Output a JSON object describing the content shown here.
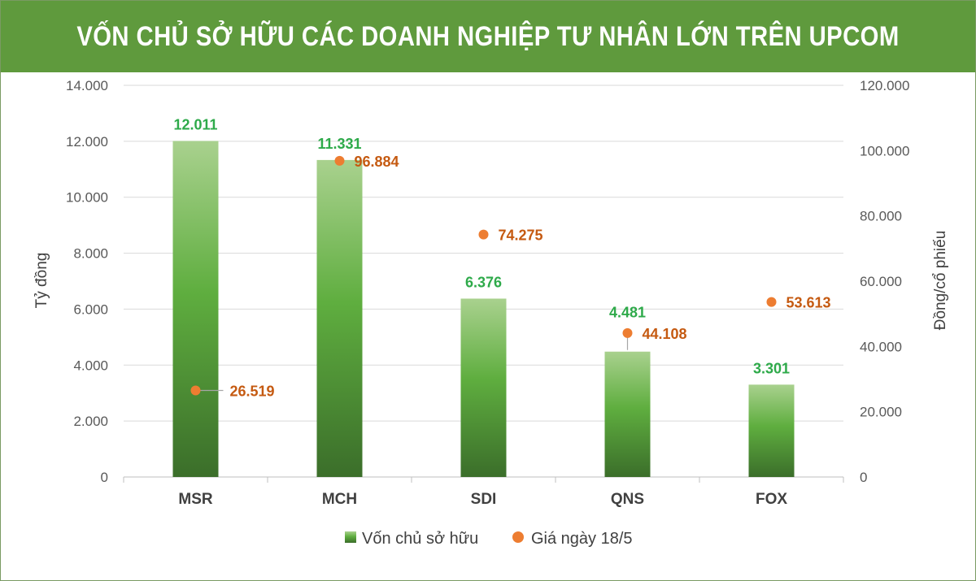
{
  "title": "VỐN CHỦ SỞ HỮU CÁC DOANH NGHIỆP TƯ NHÂN LỚN TRÊN UPCOM",
  "colors": {
    "title_bg": "#5f9a3d",
    "bar_top": "#a9d18e",
    "bar_mid": "#5fae3f",
    "bar_bottom": "#3b6e2a",
    "dot": "#ed7d31",
    "bar_label": "#2eaa4a",
    "dot_label": "#c55a11"
  },
  "chart_data": {
    "type": "bar",
    "title": "VỐN CHỦ SỞ HỮU CÁC DOANH NGHIỆP TƯ NHÂN LỚN TRÊN UPCOM",
    "categories": [
      "MSR",
      "MCH",
      "SDI",
      "QNS",
      "FOX"
    ],
    "series": [
      {
        "name": "Vốn chủ sở hữu",
        "type": "bar",
        "axis": "left",
        "values": [
          12011,
          11331,
          6376,
          4481,
          3301
        ],
        "labels": [
          "12.011",
          "11.331",
          "6.376",
          "4.481",
          "3.301"
        ]
      },
      {
        "name": "Giá ngày 18/5",
        "type": "scatter",
        "axis": "right",
        "values": [
          26519,
          96884,
          74275,
          44108,
          53613
        ],
        "labels": [
          "26.519",
          "96.884",
          "74.275",
          "44.108",
          "53.613"
        ]
      }
    ],
    "ylabel": "Tỷ đồng",
    "y2label": "Đồng/cổ phiếu",
    "ylim": [
      0,
      14000
    ],
    "y2lim": [
      0,
      120000
    ],
    "yticks": [
      "0",
      "2.000",
      "4.000",
      "6.000",
      "8.000",
      "10.000",
      "12.000",
      "14.000"
    ],
    "y2ticks": [
      "0",
      "20.000",
      "40.000",
      "60.000",
      "80.000",
      "100.000",
      "120.000"
    ],
    "grid": true,
    "legend": "bottom",
    "legend_labels": [
      "Vốn chủ sở hữu",
      "Giá ngày 18/5"
    ]
  }
}
